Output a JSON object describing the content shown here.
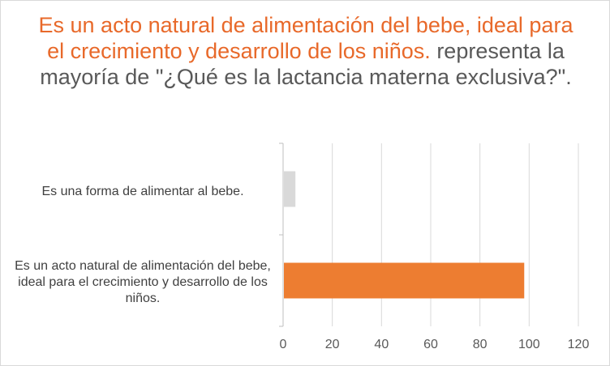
{
  "chart_data": {
    "type": "bar",
    "orientation": "horizontal",
    "title_highlight": "Es un acto natural de alimentación del bebe, ideal para el crecimiento y desarrollo  de los niños.",
    "title_rest": " representa la mayoría de \"¿Qué es la lactancia materna exclusiva?\".",
    "categories": [
      "Es una forma de alimentar al bebe.",
      "Es un acto natural de alimentación del bebe, ideal para el crecimiento y desarrollo  de los niños."
    ],
    "values": [
      5,
      98
    ],
    "colors": [
      "#d9d9d9",
      "#ed7d31"
    ],
    "xlim": [
      0,
      120
    ],
    "xticks": [
      0,
      20,
      40,
      60,
      80,
      100,
      120
    ],
    "grid": true,
    "legend": "none",
    "xlabel": "",
    "ylabel": ""
  }
}
